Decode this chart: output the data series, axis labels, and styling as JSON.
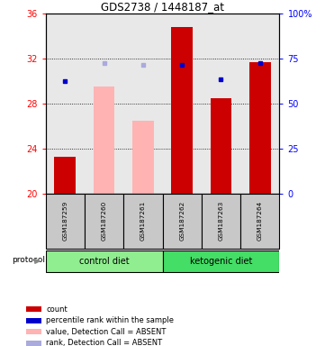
{
  "title": "GDS2738 / 1448187_at",
  "samples": [
    "GSM187259",
    "GSM187260",
    "GSM187261",
    "GSM187262",
    "GSM187263",
    "GSM187264"
  ],
  "ylim_left": [
    20,
    36
  ],
  "ylim_right": [
    0,
    100
  ],
  "yticks_left": [
    20,
    24,
    28,
    32,
    36
  ],
  "yticks_right": [
    0,
    25,
    50,
    75,
    100
  ],
  "ytick_labels_right": [
    "0",
    "25",
    "50",
    "75",
    "100%"
  ],
  "bar_values": [
    23.3,
    29.5,
    26.5,
    34.8,
    28.5,
    31.7
  ],
  "bar_absent": [
    false,
    true,
    true,
    false,
    false,
    false
  ],
  "bar_color_present": "#CC0000",
  "bar_color_absent": "#FFB3B3",
  "dot_values": [
    30.0,
    31.6,
    31.5,
    31.5,
    30.2,
    31.6
  ],
  "dot_absent": [
    false,
    true,
    true,
    false,
    false,
    false
  ],
  "dot_color_present": "#0000CC",
  "dot_color_absent": "#AAAADD",
  "plot_bgcolor": "#E8E8E8",
  "bar_width": 0.55,
  "ctrl_color": "#90EE90",
  "keto_color": "#44DD66",
  "sample_box_color": "#C8C8C8",
  "legend_colors": [
    "#CC0000",
    "#0000CC",
    "#FFB3B3",
    "#AAAADD"
  ],
  "legend_labels": [
    "count",
    "percentile rank within the sample",
    "value, Detection Call = ABSENT",
    "rank, Detection Call = ABSENT"
  ]
}
